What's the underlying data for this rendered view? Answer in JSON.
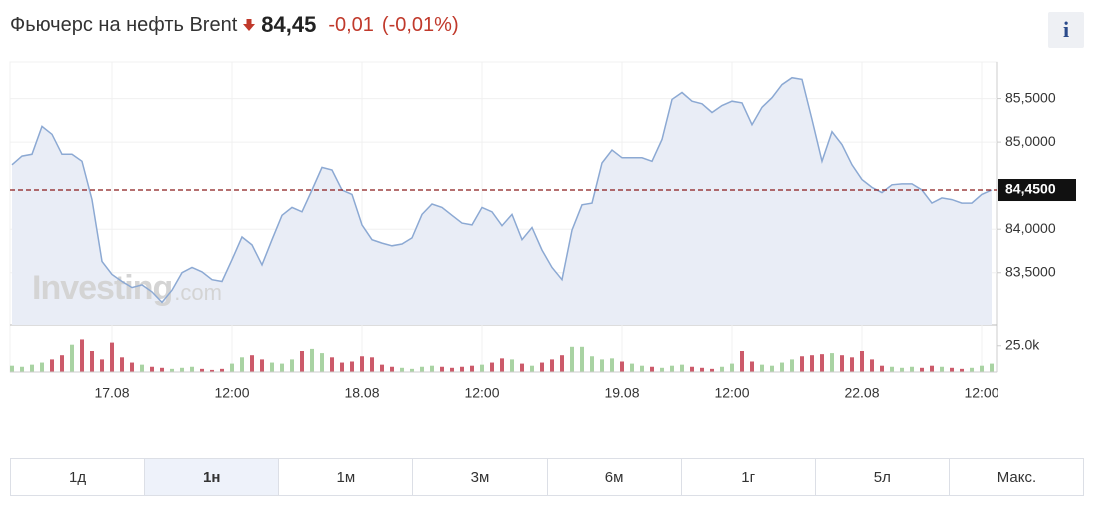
{
  "header": {
    "title": "Фьючерс на нефть Brent",
    "price": "84,45",
    "change": "-0,01",
    "change_pct": "(-0,01%)",
    "info": "i"
  },
  "watermark": {
    "brand": "Investing",
    "domain": ".com"
  },
  "chart_data": [
    {
      "type": "line",
      "color": "#8ca9d3",
      "fill": "#e9edf6",
      "categories": [
        null,
        null,
        null,
        null,
        null,
        null,
        null,
        null,
        null,
        null,
        "17.08",
        null,
        null,
        null,
        null,
        null,
        null,
        null,
        null,
        null,
        null,
        null,
        "12:00",
        null,
        null,
        null,
        null,
        null,
        null,
        null,
        null,
        null,
        null,
        null,
        null,
        "18.08",
        null,
        null,
        null,
        null,
        null,
        null,
        null,
        null,
        null,
        null,
        null,
        "12:00",
        null,
        null,
        null,
        null,
        null,
        null,
        null,
        null,
        null,
        null,
        null,
        null,
        null,
        "19.08",
        null,
        null,
        null,
        null,
        null,
        null,
        null,
        null,
        null,
        null,
        "12:00",
        null,
        null,
        null,
        null,
        null,
        null,
        null,
        null,
        null,
        null,
        null,
        null,
        "22.08",
        null,
        null,
        null,
        null,
        null,
        null,
        null,
        null,
        null,
        null,
        null,
        "12:00",
        null
      ],
      "values": [
        84.74,
        84.84,
        84.86,
        85.18,
        85.09,
        84.86,
        84.86,
        84.78,
        84.34,
        83.63,
        83.48,
        83.4,
        83.33,
        83.36,
        83.28,
        83.16,
        83.3,
        83.5,
        83.56,
        83.51,
        83.42,
        83.4,
        83.65,
        83.91,
        83.82,
        83.59,
        83.88,
        84.16,
        84.25,
        84.2,
        84.45,
        84.71,
        84.68,
        84.45,
        84.4,
        84.05,
        83.88,
        83.84,
        83.81,
        83.83,
        83.9,
        84.17,
        84.29,
        84.25,
        84.16,
        84.07,
        84.05,
        84.25,
        84.2,
        84.04,
        84.17,
        83.88,
        84.02,
        83.76,
        83.56,
        83.42,
        83.99,
        84.28,
        84.3,
        84.76,
        84.91,
        84.82,
        84.82,
        84.82,
        84.78,
        85.03,
        85.49,
        85.57,
        85.47,
        85.44,
        85.34,
        85.42,
        85.47,
        85.45,
        85.2,
        85.4,
        85.51,
        85.66,
        85.74,
        85.72,
        85.26,
        84.78,
        85.12,
        84.97,
        84.74,
        84.57,
        84.48,
        84.42,
        84.51,
        84.52,
        84.52,
        84.45,
        84.3,
        84.36,
        84.34,
        84.3,
        84.3,
        84.4,
        84.45
      ],
      "ylim": [
        82.9,
        85.92
      ],
      "yticks": [
        {
          "value": 83.5,
          "label": "83,5000"
        },
        {
          "value": 84,
          "label": "84,0000"
        },
        {
          "value": 85,
          "label": "85,0000"
        },
        {
          "value": 85.5,
          "label": "85,5000"
        }
      ],
      "current": {
        "value": 84.45,
        "label": "84,4500",
        "color": "#8b1a1a"
      },
      "grid": true
    },
    {
      "type": "bar",
      "up_color": "#a9d3a3",
      "down_color": "#cc5a6a",
      "values": [
        6000,
        5000,
        7000,
        9000,
        12000,
        16000,
        26000,
        31000,
        20000,
        12000,
        28000,
        14000,
        9000,
        7000,
        5000,
        4000,
        3000,
        4000,
        5000,
        3000,
        2000,
        3000,
        8000,
        14000,
        16000,
        12000,
        9000,
        8000,
        12000,
        20000,
        22000,
        18000,
        14000,
        9000,
        10000,
        15000,
        14000,
        7000,
        5000,
        4000,
        3000,
        5000,
        6000,
        5000,
        4000,
        5000,
        6000,
        7000,
        9000,
        13000,
        12000,
        8000,
        6000,
        9000,
        12000,
        16000,
        24000,
        24000,
        15000,
        12000,
        13000,
        10000,
        8000,
        6000,
        5000,
        4000,
        6000,
        7000,
        5000,
        4000,
        3000,
        5000,
        8000,
        20000,
        10000,
        7000,
        6000,
        9000,
        12000,
        15000,
        16000,
        17000,
        18000,
        16000,
        14000,
        20000,
        12000,
        6000,
        5000,
        4000,
        5000,
        4000,
        6000,
        5000,
        4000,
        3000,
        4000,
        6000,
        8000
      ],
      "ylim": [
        0,
        40000
      ],
      "yticks": [
        {
          "value": 25000,
          "label": "25.0k"
        }
      ]
    }
  ],
  "periods": {
    "items": [
      "1д",
      "1н",
      "1м",
      "3м",
      "6м",
      "1г",
      "5л",
      "Макс."
    ],
    "selected": 1
  }
}
